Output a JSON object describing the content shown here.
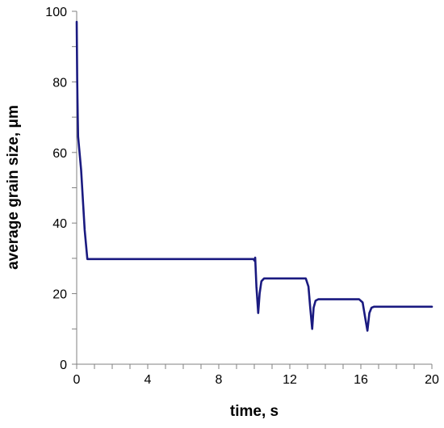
{
  "chart_data": {
    "type": "line",
    "title": "",
    "xlabel": "time, s",
    "ylabel": "average grain size, μm",
    "xlim": [
      0,
      20
    ],
    "ylim": [
      0,
      100
    ],
    "xticks": [
      0,
      4,
      8,
      12,
      16,
      20
    ],
    "yticks": [
      0,
      20,
      40,
      60,
      80,
      100
    ],
    "x_minor_step": 1,
    "y_minor_step": 10,
    "grid": false,
    "legend": "none",
    "series": [
      {
        "color": "#1a1a80",
        "points": [
          [
            0.0,
            97
          ],
          [
            0.03,
            80
          ],
          [
            0.06,
            70
          ],
          [
            0.08,
            64.5
          ],
          [
            0.25,
            55
          ],
          [
            0.45,
            38
          ],
          [
            0.6,
            29.8
          ],
          [
            9.6,
            29.8
          ],
          [
            9.95,
            29.8
          ],
          [
            10.02,
            29.3
          ],
          [
            10.05,
            30.2
          ],
          [
            10.12,
            22
          ],
          [
            10.22,
            14.5
          ],
          [
            10.3,
            20
          ],
          [
            10.4,
            23.5
          ],
          [
            10.55,
            24.3
          ],
          [
            12.9,
            24.3
          ],
          [
            13.05,
            22
          ],
          [
            13.15,
            16
          ],
          [
            13.26,
            10
          ],
          [
            13.34,
            16
          ],
          [
            13.45,
            18
          ],
          [
            13.6,
            18.4
          ],
          [
            15.9,
            18.4
          ],
          [
            16.1,
            17.5
          ],
          [
            16.25,
            13
          ],
          [
            16.37,
            9.5
          ],
          [
            16.48,
            14.5
          ],
          [
            16.6,
            16
          ],
          [
            16.75,
            16.3
          ],
          [
            20.0,
            16.3
          ]
        ]
      }
    ]
  }
}
